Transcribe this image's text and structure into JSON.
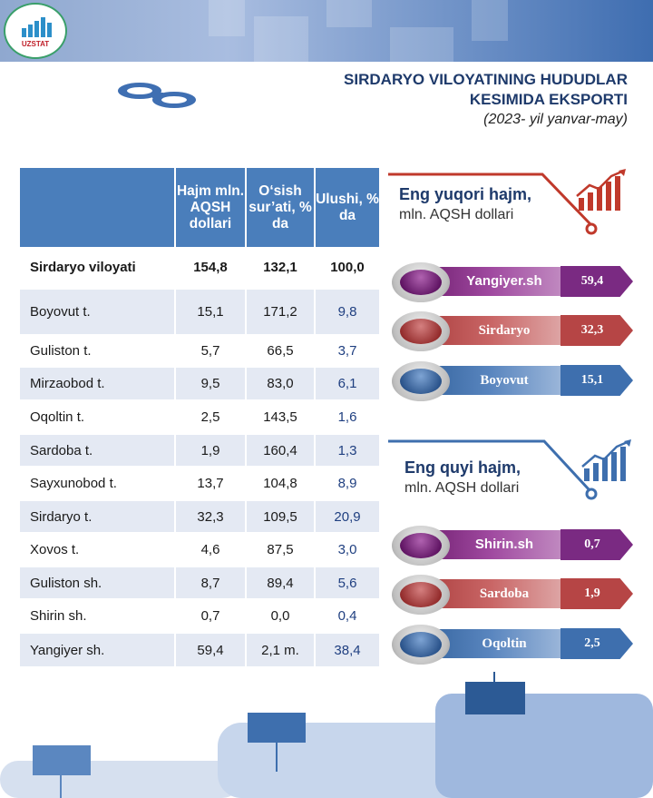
{
  "header": {
    "logo_text": "UZSTAT",
    "title_line1": "SIRDARYO VILOYATINING HUDUDLAR",
    "title_line2": "KESIMIDA EKSPORTI",
    "subtitle": "(2023- yil yanvar-may)"
  },
  "table": {
    "columns": [
      "",
      "Hajm mln. AQSH dollari",
      "O‘sish sur’ati, % da",
      "Ulushi, % da"
    ],
    "total": {
      "name": "Sirdaryo viloyati",
      "volume": "154,8",
      "growth": "132,1",
      "share": "100,0"
    },
    "rows": [
      {
        "name": "Boyovut t.",
        "volume": "15,1",
        "growth": "171,2",
        "share": "9,8"
      },
      {
        "name": "Guliston t.",
        "volume": "5,7",
        "growth": "66,5",
        "share": "3,7"
      },
      {
        "name": "Mirzaobod t.",
        "volume": "9,5",
        "growth": "83,0",
        "share": "6,1"
      },
      {
        "name": "Oqoltin t.",
        "volume": "2,5",
        "growth": "143,5",
        "share": "1,6"
      },
      {
        "name": "Sardoba t.",
        "volume": "1,9",
        "growth": "160,4",
        "share": "1,3"
      },
      {
        "name": "Sayxunobod t.",
        "volume": "13,7",
        "growth": "104,8",
        "share": "8,9"
      },
      {
        "name": "Sirdaryo t.",
        "volume": "32,3",
        "growth": "109,5",
        "share": "20,9"
      },
      {
        "name": "Xovos t.",
        "volume": "4,6",
        "growth": "87,5",
        "share": "3,0"
      },
      {
        "name": "Guliston sh.",
        "volume": "8,7",
        "growth": "89,4",
        "share": "5,6"
      },
      {
        "name": "Shirin sh.",
        "volume": "0,7",
        "growth": "0,0",
        "share": "0,4"
      },
      {
        "name": "Yangiyer sh.",
        "volume": "59,4",
        "growth": "2,1 m.",
        "share": "38,4"
      }
    ]
  },
  "top": {
    "heading": "Eng yuqori hajm,",
    "unit": "mln. AQSH dollari",
    "items": [
      {
        "name": "Yangiyer.sh",
        "value": "59,4"
      },
      {
        "name": "Sirdaryo",
        "value": "32,3"
      },
      {
        "name": "Boyovut",
        "value": "15,1"
      }
    ]
  },
  "bottom": {
    "heading": "Eng quyi hajm,",
    "unit": "mln. AQSH dollari",
    "items": [
      {
        "name": "Shirin.sh",
        "value": "0,7"
      },
      {
        "name": "Sardoba",
        "value": "1,9"
      },
      {
        "name": "Oqoltin",
        "value": "2,5"
      }
    ]
  },
  "colors": {
    "header_blue": "#4a7ebb",
    "title_blue": "#1e3a6b",
    "purple": "#7a2a82",
    "red": "#b64545",
    "blue": "#3e6fae",
    "accent_red": "#c0392b"
  }
}
